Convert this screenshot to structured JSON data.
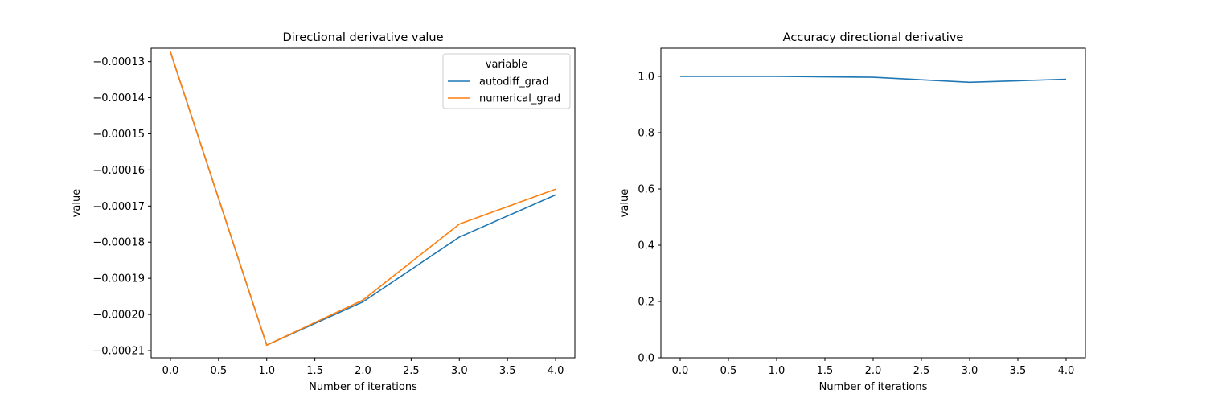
{
  "chart_data": [
    {
      "type": "line",
      "title": "Directional derivative value",
      "xlabel": "Number of iterations",
      "ylabel": "value",
      "x": [
        0,
        1,
        2,
        3,
        4
      ],
      "xlim": [
        -0.2,
        4.2
      ],
      "ylim": [
        -0.000212,
        -0.0001263
      ],
      "xticks": [
        0.0,
        0.5,
        1.0,
        1.5,
        2.0,
        2.5,
        3.0,
        3.5,
        4.0
      ],
      "xtick_labels": [
        "0.0",
        "0.5",
        "1.0",
        "1.5",
        "2.0",
        "2.5",
        "3.0",
        "3.5",
        "4.0"
      ],
      "yticks": [
        -0.00013,
        -0.00014,
        -0.00015,
        -0.00016,
        -0.00017,
        -0.00018,
        -0.00019,
        -0.0002,
        -0.00021
      ],
      "ytick_labels": [
        "−0.00013",
        "−0.00014",
        "−0.00015",
        "−0.00016",
        "−0.00017",
        "−0.00018",
        "−0.00019",
        "−0.00020",
        "−0.00021"
      ],
      "grid": false,
      "legend": {
        "title": "variable",
        "position": "top-right"
      },
      "series": [
        {
          "name": "autodiff_grad",
          "color": "#1f77b4",
          "values": [
            -0.0001273,
            -0.0002085,
            -0.0001965,
            -0.0001786,
            -0.0001669
          ]
        },
        {
          "name": "numerical_grad",
          "color": "#ff7f0e",
          "values": [
            -0.0001273,
            -0.0002085,
            -0.000196,
            -0.000175,
            -0.0001653
          ]
        }
      ]
    },
    {
      "type": "line",
      "title": "Accuracy directional derivative",
      "xlabel": "Number of iterations",
      "ylabel": "value",
      "x": [
        0,
        1,
        2,
        3,
        4
      ],
      "xlim": [
        -0.2,
        4.2
      ],
      "ylim": [
        0,
        1.1
      ],
      "xticks": [
        0.0,
        0.5,
        1.0,
        1.5,
        2.0,
        2.5,
        3.0,
        3.5,
        4.0
      ],
      "xtick_labels": [
        "0.0",
        "0.5",
        "1.0",
        "1.5",
        "2.0",
        "2.5",
        "3.0",
        "3.5",
        "4.0"
      ],
      "yticks": [
        0.0,
        0.2,
        0.4,
        0.6,
        0.8,
        1.0
      ],
      "ytick_labels": [
        "0.0",
        "0.2",
        "0.4",
        "0.6",
        "0.8",
        "1.0"
      ],
      "grid": false,
      "series": [
        {
          "color": "#1f77b4",
          "values": [
            1.0,
            1.0,
            0.997,
            0.979,
            0.99
          ]
        }
      ]
    }
  ]
}
